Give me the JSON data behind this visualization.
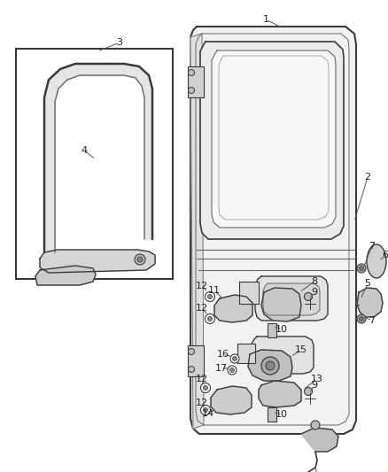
{
  "bg_color": "#ffffff",
  "fig_width": 4.38,
  "fig_height": 5.33,
  "dpi": 100,
  "line_dark": "#3a3a3a",
  "line_mid": "#666666",
  "line_light": "#999999",
  "fill_door": "#f5f5f5",
  "fill_glass": "#f0f0f0",
  "fill_part": "#d8d8d8"
}
